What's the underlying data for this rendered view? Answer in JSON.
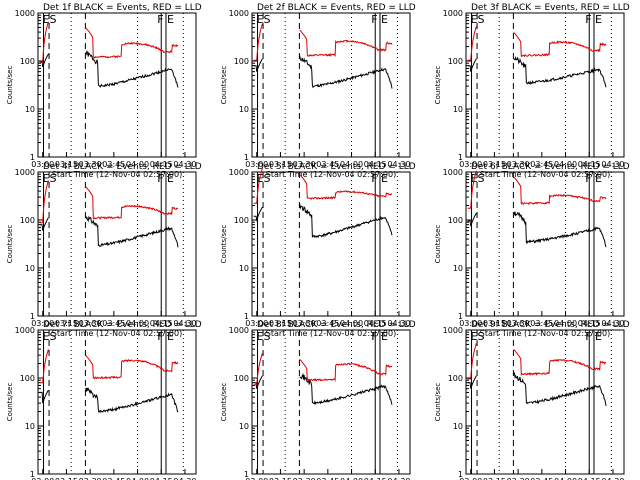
{
  "figure": {
    "ylabel": "Counts/sec",
    "xlabel": "Start Time (12-Nov-04 02:57:00)",
    "xticks": [
      "03:00",
      "03:15",
      "03:30",
      "03:45",
      "04:00",
      "04:15",
      "04:30"
    ],
    "yticks": [
      "1",
      "10",
      "100",
      "1000"
    ],
    "marker_labels": {
      "start": "ES",
      "flare": "F",
      "end": "E"
    },
    "colors": {
      "events": "#000000",
      "lld": "#dd0000",
      "axes": "#000000"
    }
  },
  "chart_data": [
    {
      "type": "line",
      "title": "Det 1f BLACK = Events, RED = LLD",
      "detector": "1f",
      "ylim": [
        1,
        1000
      ],
      "yscale": "log",
      "x_range": [
        "02:57",
        "04:37"
      ],
      "events_peak": 150,
      "events_valley": 30,
      "events_end": 60,
      "lld_peak": 500,
      "lld_valley": 120,
      "lld_end": 180
    },
    {
      "type": "line",
      "title": "Det 2f BLACK = Events, RED = LLD",
      "detector": "2f",
      "ylim": [
        1,
        1000
      ],
      "yscale": "log",
      "x_range": [
        "02:57",
        "04:37"
      ],
      "events_peak": 120,
      "events_valley": 30,
      "events_end": 60,
      "lld_peak": 450,
      "lld_valley": 130,
      "lld_end": 200
    },
    {
      "type": "line",
      "title": "Det 3f BLACK = Events, RED = LLD",
      "detector": "3f",
      "ylim": [
        1,
        1000
      ],
      "yscale": "log",
      "x_range": [
        "02:57",
        "04:37"
      ],
      "events_peak": 120,
      "events_valley": 35,
      "events_end": 60,
      "lld_peak": 400,
      "lld_valley": 130,
      "lld_end": 190
    },
    {
      "type": "line",
      "title": "Det 4f BLACK = Events, RED = LLD",
      "detector": "4f",
      "ylim": [
        1,
        1000
      ],
      "yscale": "log",
      "x_range": [
        "02:57",
        "04:37"
      ],
      "events_peak": 120,
      "events_valley": 30,
      "events_end": 60,
      "lld_peak": 500,
      "lld_valley": 110,
      "lld_end": 150
    },
    {
      "type": "line",
      "title": "Det 5f BLACK = Events, RED = LLD",
      "detector": "5f",
      "ylim": [
        1,
        1000
      ],
      "yscale": "log",
      "x_range": [
        "02:57",
        "04:37"
      ],
      "events_peak": 200,
      "events_valley": 45,
      "events_end": 100,
      "lld_peak": 900,
      "lld_valley": 280,
      "lld_end": 300
    },
    {
      "type": "line",
      "title": "Det 6f BLACK = Events, RED = LLD",
      "detector": "6f",
      "ylim": [
        1,
        1000
      ],
      "yscale": "log",
      "x_range": [
        "02:57",
        "04:37"
      ],
      "events_peak": 150,
      "events_valley": 35,
      "events_end": 60,
      "lld_peak": 800,
      "lld_valley": 220,
      "lld_end": 250
    },
    {
      "type": "line",
      "title": "Det 7f BLACK = Events, RED = LLD",
      "detector": "7f",
      "ylim": [
        1,
        1000
      ],
      "yscale": "log",
      "x_range": [
        "02:57",
        "04:37"
      ],
      "events_peak": 60,
      "events_valley": 20,
      "events_end": 40,
      "lld_peak": 300,
      "lld_valley": 100,
      "lld_end": 180
    },
    {
      "type": "line",
      "title": "Det 8f BLACK = Events, RED = LLD",
      "detector": "8f",
      "ylim": [
        1,
        1000
      ],
      "yscale": "log",
      "x_range": [
        "02:57",
        "04:37"
      ],
      "events_peak": 120,
      "events_valley": 30,
      "events_end": 60,
      "lld_peak": 250,
      "lld_valley": 90,
      "lld_end": 150
    },
    {
      "type": "line",
      "title": "Det 9f BLACK = Events, RED = LLD",
      "detector": "9f",
      "ylim": [
        1,
        1000
      ],
      "yscale": "log",
      "x_range": [
        "02:57",
        "04:37"
      ],
      "events_peak": 120,
      "events_valley": 30,
      "events_end": 60,
      "lld_peak": 400,
      "lld_valley": 120,
      "lld_end": 180
    }
  ]
}
